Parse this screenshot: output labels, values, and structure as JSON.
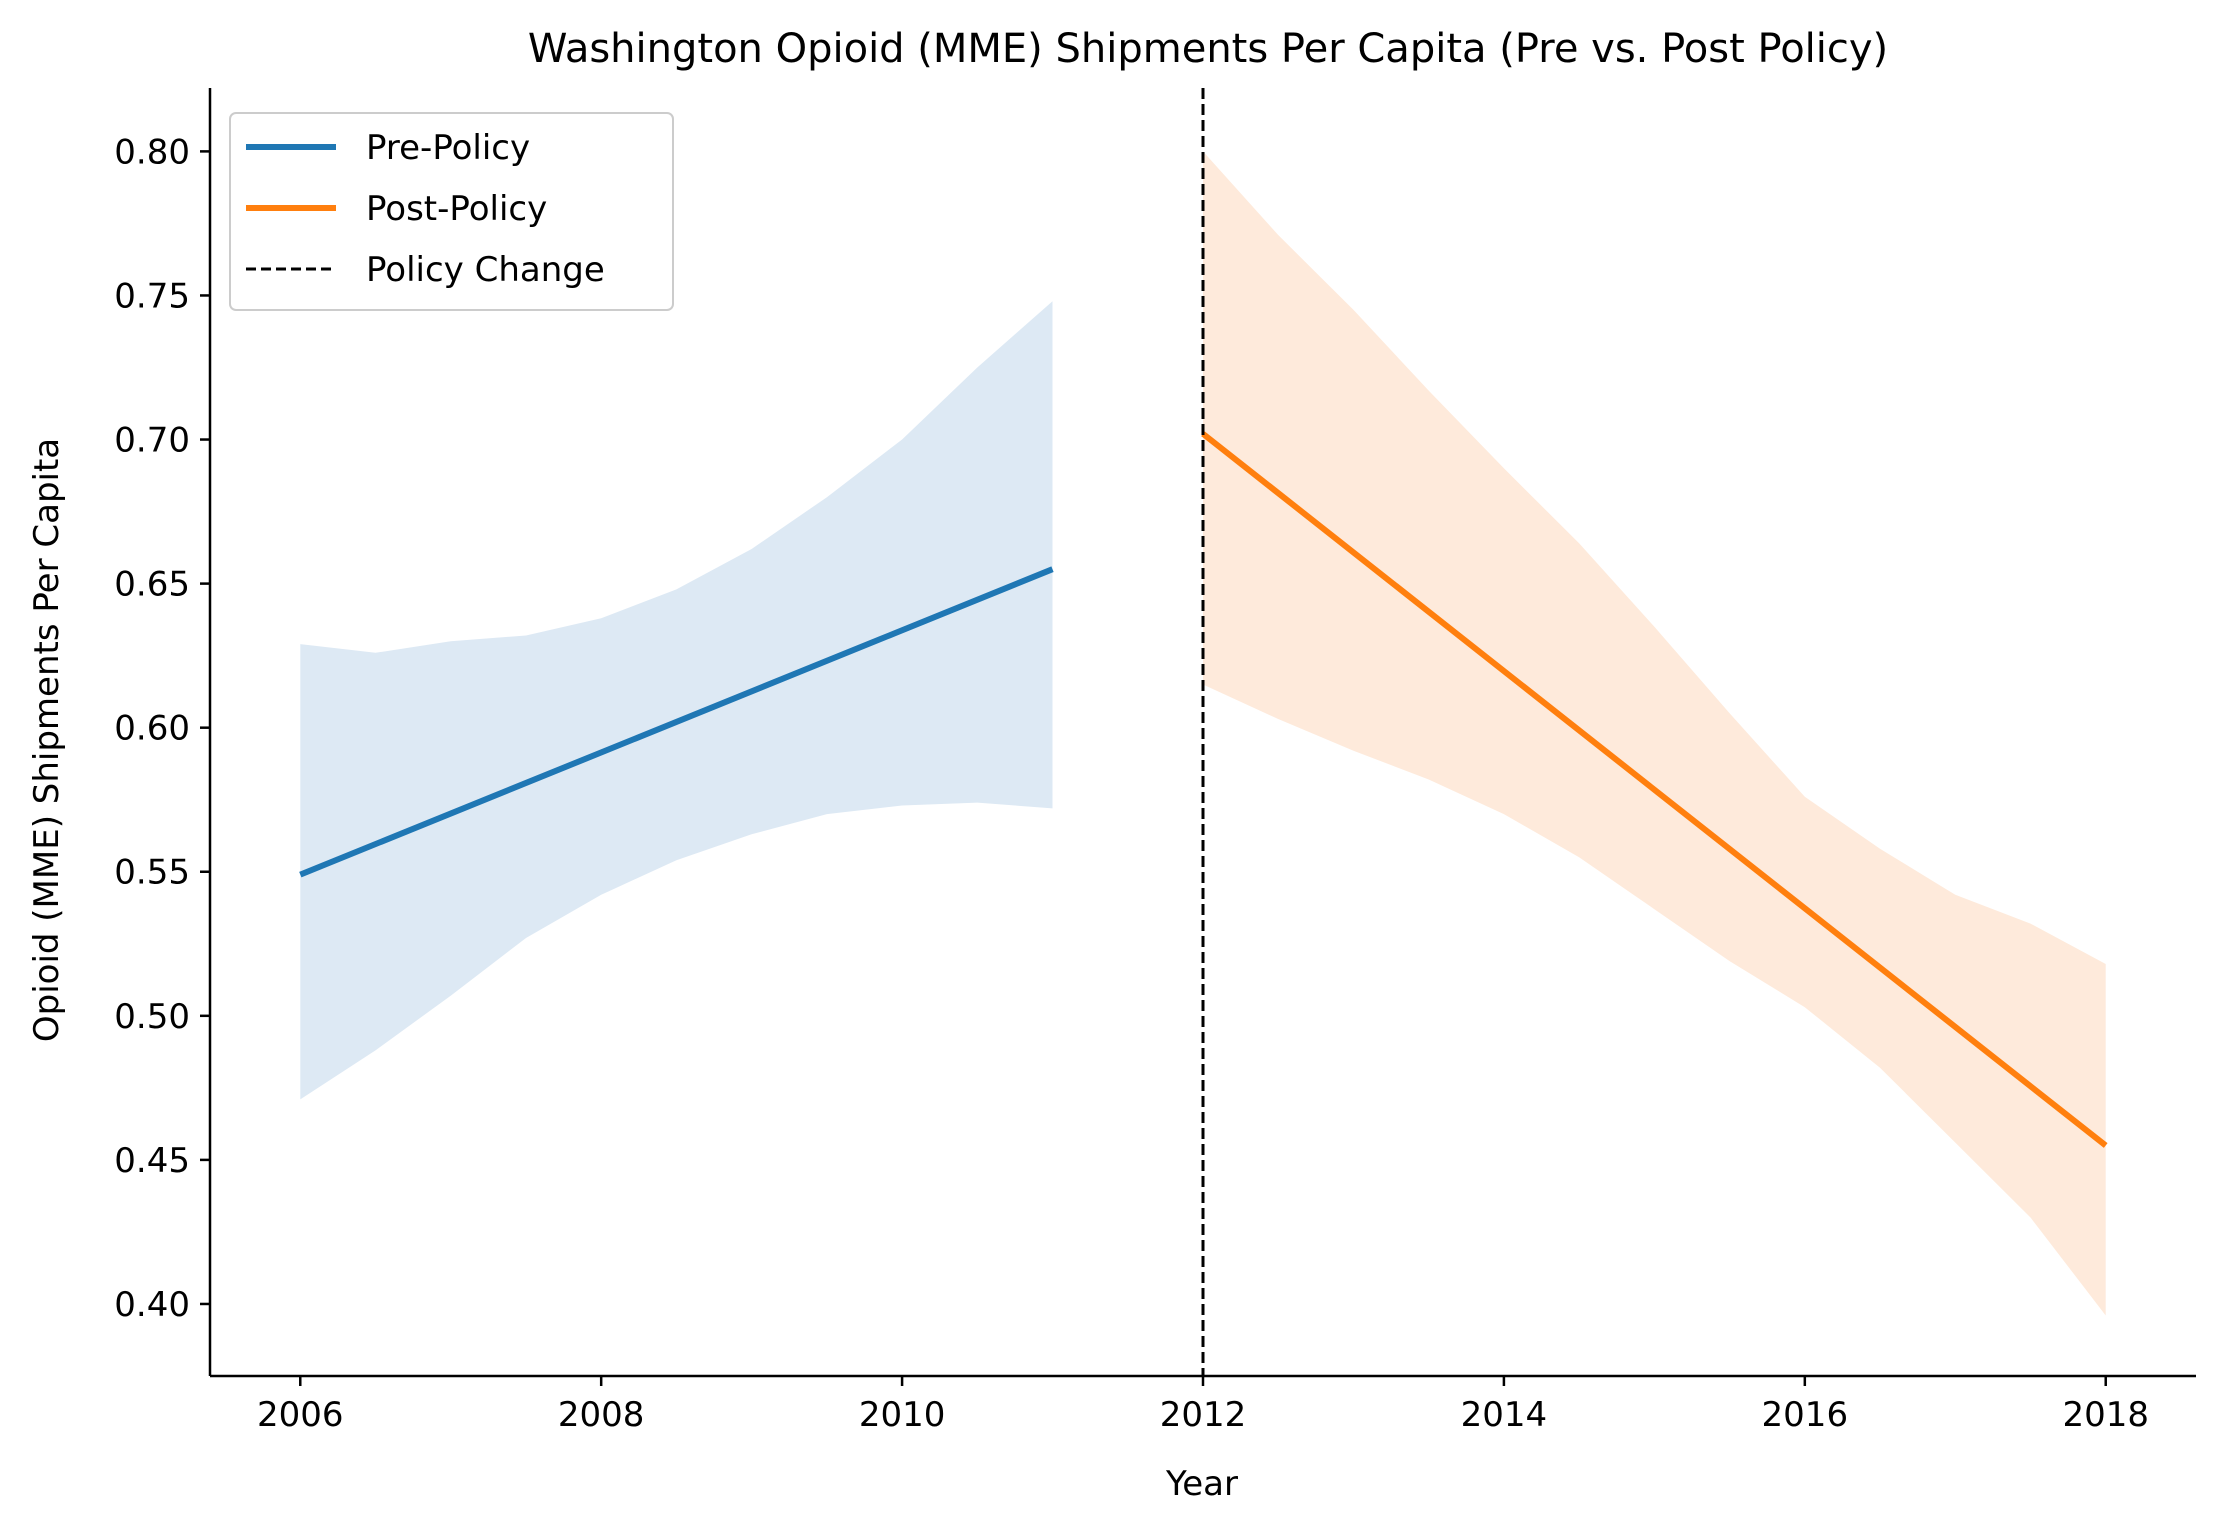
{
  "chart_data": {
    "type": "line",
    "title": "Washington Opioid (MME) Shipments Per Capita (Pre vs. Post Policy)",
    "xlabel": "Year",
    "ylabel": "Opioid (MME) Shipments Per Capita",
    "xlim": [
      2005.4,
      2018.6
    ],
    "ylim": [
      0.375,
      0.822
    ],
    "x_ticks": [
      2006,
      2008,
      2010,
      2012,
      2014,
      2016,
      2018
    ],
    "y_ticks": [
      0.4,
      0.45,
      0.5,
      0.55,
      0.6,
      0.65,
      0.7,
      0.75,
      0.8
    ],
    "grid": false,
    "legend_position": "top-left",
    "series": [
      {
        "name": "Pre-Policy",
        "color": "#1f77b4",
        "band_color": "#dde9f4",
        "x": [
          2006,
          2011
        ],
        "y": [
          0.549,
          0.655
        ],
        "ci_x": [
          2006,
          2006.5,
          2007,
          2007.5,
          2008,
          2008.5,
          2009,
          2009.5,
          2010,
          2010.5,
          2011
        ],
        "ci_lower": [
          0.471,
          0.488,
          0.507,
          0.527,
          0.542,
          0.554,
          0.563,
          0.57,
          0.573,
          0.574,
          0.572
        ],
        "ci_upper": [
          0.629,
          0.626,
          0.63,
          0.632,
          0.638,
          0.648,
          0.662,
          0.68,
          0.7,
          0.725,
          0.748
        ]
      },
      {
        "name": "Post-Policy",
        "color": "#ff7f0e",
        "band_color": "#feeadb",
        "x": [
          2012,
          2018
        ],
        "y": [
          0.702,
          0.455
        ],
        "ci_x": [
          2012,
          2012.5,
          2013,
          2013.5,
          2014,
          2014.5,
          2015,
          2015.5,
          2016,
          2016.5,
          2017,
          2017.5,
          2018
        ],
        "ci_lower": [
          0.615,
          0.603,
          0.592,
          0.582,
          0.57,
          0.555,
          0.537,
          0.519,
          0.503,
          0.482,
          0.456,
          0.43,
          0.396
        ],
        "ci_upper": [
          0.8,
          0.771,
          0.745,
          0.717,
          0.69,
          0.664,
          0.635,
          0.605,
          0.576,
          0.558,
          0.542,
          0.532,
          0.518
        ]
      }
    ],
    "reference_line": {
      "name": "Policy Change",
      "x": 2012,
      "color": "#000000",
      "style": "dashed"
    }
  }
}
